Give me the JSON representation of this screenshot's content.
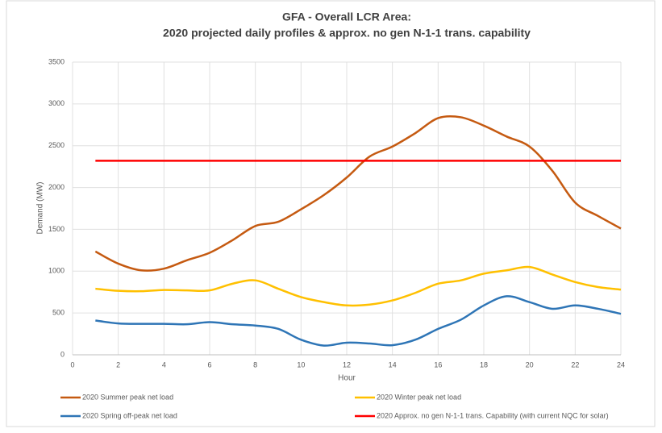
{
  "chart_data": {
    "type": "line",
    "title": [
      "GFA - Overall LCR Area:",
      "2020 projected daily profiles & approx. no  gen N-1-1 trans. capability"
    ],
    "x_label": "Hour",
    "y_label": "Demand (MW)",
    "x": [
      1,
      2,
      3,
      4,
      5,
      6,
      7,
      8,
      9,
      10,
      11,
      12,
      13,
      14,
      15,
      16,
      17,
      18,
      19,
      20,
      21,
      22,
      23,
      24
    ],
    "series": [
      {
        "name": "2020 Summer peak net load",
        "color": "#c55a11",
        "values": [
          1235,
          1090,
          1010,
          1030,
          1130,
          1220,
          1370,
          1540,
          1590,
          1740,
          1910,
          2120,
          2370,
          2490,
          2650,
          2830,
          2840,
          2740,
          2610,
          2490,
          2200,
          1820,
          1660,
          1510
        ]
      },
      {
        "name": "2020 Winter peak net load",
        "color": "#ffc000",
        "values": [
          790,
          765,
          760,
          775,
          770,
          770,
          850,
          890,
          790,
          690,
          630,
          590,
          600,
          650,
          740,
          850,
          890,
          970,
          1010,
          1050,
          960,
          870,
          810,
          780
        ]
      },
      {
        "name": "2020 Spring off-peak net load",
        "color": "#2e75b6",
        "values": [
          410,
          375,
          370,
          370,
          365,
          390,
          365,
          350,
          310,
          180,
          110,
          145,
          135,
          115,
          180,
          310,
          420,
          590,
          700,
          630,
          550,
          590,
          550,
          490
        ]
      },
      {
        "name": "2020 Approx. no  gen N-1-1 trans. Capability (with current NQC for solar)",
        "color": "#ff0000",
        "values": [
          2320,
          2320,
          2320,
          2320,
          2320,
          2320,
          2320,
          2320,
          2320,
          2320,
          2320,
          2320,
          2320,
          2320,
          2320,
          2320,
          2320,
          2320,
          2320,
          2320,
          2320,
          2320,
          2320,
          2320
        ]
      }
    ],
    "xlim": [
      0,
      24
    ],
    "xticks": [
      0,
      2,
      4,
      6,
      8,
      10,
      12,
      14,
      16,
      18,
      20,
      22,
      24
    ],
    "ylim": [
      0,
      3500
    ],
    "yticks": [
      0,
      500,
      1000,
      1500,
      2000,
      2500,
      3000,
      3500
    ],
    "grid": true,
    "legend": "bottom"
  }
}
